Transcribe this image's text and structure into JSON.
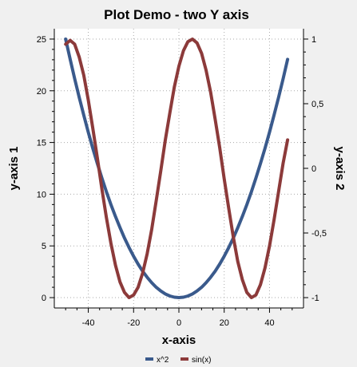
{
  "chart_data": {
    "type": "line",
    "title": "Plot Demo - two Y axis",
    "xlabel": "x-axis",
    "ylabel": "y-axis 1",
    "y2label": "y-axis 2",
    "xlim": [
      -55,
      55
    ],
    "ylim": [
      -1,
      26
    ],
    "y2lim": [
      -1.08,
      1.08
    ],
    "x_ticks": [
      -40,
      -20,
      0,
      20,
      40
    ],
    "y_ticks": [
      0,
      5,
      10,
      15,
      20,
      25
    ],
    "y2_ticks": [
      -1,
      -0.5,
      0,
      0.5,
      1
    ],
    "x_tick_labels": [
      "-40",
      "-20",
      "0",
      "20",
      "40"
    ],
    "y_tick_labels": [
      "0",
      "5",
      "10",
      "15",
      "20",
      "25"
    ],
    "y2_tick_labels": [
      "-1",
      "-0,5",
      "0",
      "0,5",
      "1"
    ],
    "grid": true,
    "legend_position": "bottom-center",
    "series": [
      {
        "name": "x^2",
        "axis": "left",
        "color": "#3a5a8c",
        "x": [
          -50,
          -48,
          -46,
          -44,
          -42,
          -40,
          -38,
          -36,
          -34,
          -32,
          -30,
          -28,
          -26,
          -24,
          -22,
          -20,
          -18,
          -16,
          -14,
          -12,
          -10,
          -8,
          -6,
          -4,
          -2,
          0,
          2,
          4,
          6,
          8,
          10,
          12,
          14,
          16,
          18,
          20,
          22,
          24,
          26,
          28,
          30,
          32,
          34,
          36,
          38,
          40,
          42,
          44,
          46,
          48
        ],
        "y": [
          25.0,
          23.04,
          21.16,
          19.36,
          17.64,
          16.0,
          14.44,
          12.96,
          11.56,
          10.24,
          9.0,
          7.84,
          6.76,
          5.76,
          4.84,
          4.0,
          3.24,
          2.56,
          1.96,
          1.44,
          1.0,
          0.64,
          0.36,
          0.16,
          0.04,
          0.0,
          0.04,
          0.16,
          0.36,
          0.64,
          1.0,
          1.44,
          1.96,
          2.56,
          3.24,
          4.0,
          4.84,
          5.76,
          6.76,
          7.84,
          9.0,
          10.24,
          11.56,
          12.96,
          14.44,
          16.0,
          17.64,
          19.36,
          21.16,
          23.04
        ]
      },
      {
        "name": "sin(x)",
        "axis": "right",
        "color": "#8c3a3a",
        "x": [
          -50,
          -48,
          -46,
          -44,
          -42,
          -40,
          -38,
          -36,
          -34,
          -32,
          -30,
          -28,
          -26,
          -24,
          -22,
          -20,
          -18,
          -16,
          -14,
          -12,
          -10,
          -8,
          -6,
          -4,
          -2,
          0,
          2,
          4,
          6,
          8,
          10,
          12,
          14,
          16,
          18,
          20,
          22,
          24,
          26,
          28,
          30,
          32,
          34,
          36,
          38,
          40,
          42,
          44,
          46,
          48
        ],
        "y": [
          0.96,
          0.99,
          0.96,
          0.86,
          0.72,
          0.53,
          0.31,
          0.08,
          -0.16,
          -0.38,
          -0.58,
          -0.75,
          -0.88,
          -0.96,
          -1.0,
          -0.98,
          -0.92,
          -0.81,
          -0.66,
          -0.47,
          -0.25,
          -0.02,
          0.22,
          0.43,
          0.63,
          0.79,
          0.91,
          0.98,
          1.0,
          0.97,
          0.89,
          0.76,
          0.59,
          0.38,
          0.16,
          -0.08,
          -0.31,
          -0.53,
          -0.72,
          -0.86,
          -0.96,
          -1.0,
          -0.98,
          -0.9,
          -0.77,
          -0.6,
          -0.4,
          -0.18,
          0.04,
          0.22
        ]
      }
    ]
  }
}
